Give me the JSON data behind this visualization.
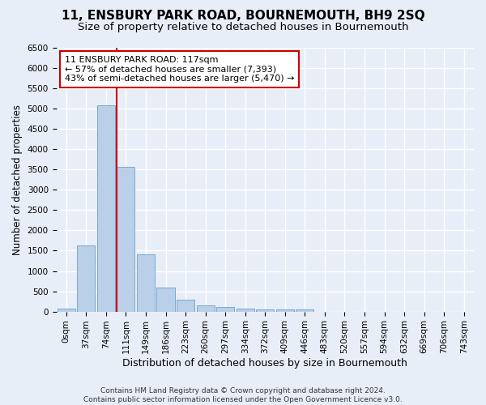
{
  "title": "11, ENSBURY PARK ROAD, BOURNEMOUTH, BH9 2SQ",
  "subtitle": "Size of property relative to detached houses in Bournemouth",
  "xlabel": "Distribution of detached houses by size in Bournemouth",
  "ylabel": "Number of detached properties",
  "footer_line1": "Contains HM Land Registry data © Crown copyright and database right 2024.",
  "footer_line2": "Contains public sector information licensed under the Open Government Licence v3.0.",
  "bar_labels": [
    "0sqm",
    "37sqm",
    "74sqm",
    "111sqm",
    "149sqm",
    "186sqm",
    "223sqm",
    "260sqm",
    "297sqm",
    "334sqm",
    "372sqm",
    "409sqm",
    "446sqm",
    "483sqm",
    "520sqm",
    "557sqm",
    "594sqm",
    "632sqm",
    "669sqm",
    "706sqm",
    "743sqm"
  ],
  "bar_values": [
    75,
    1630,
    5080,
    3570,
    1410,
    590,
    295,
    150,
    105,
    75,
    50,
    50,
    50,
    0,
    0,
    0,
    0,
    0,
    0,
    0,
    0
  ],
  "bar_color": "#bad0e8",
  "bar_edge_color": "#6a9fc8",
  "ylim": [
    0,
    6500
  ],
  "yticks": [
    0,
    500,
    1000,
    1500,
    2000,
    2500,
    3000,
    3500,
    4000,
    4500,
    5000,
    5500,
    6000,
    6500
  ],
  "vline_bin_index": 3,
  "annotation_title": "11 ENSBURY PARK ROAD: 117sqm",
  "annotation_line1": "← 57% of detached houses are smaller (7,393)",
  "annotation_line2": "43% of semi-detached houses are larger (5,470) →",
  "vline_color": "#cc0000",
  "annotation_box_facecolor": "#ffffff",
  "annotation_box_edgecolor": "#cc0000",
  "background_color": "#e8eef8",
  "grid_color": "#ffffff",
  "title_fontsize": 11,
  "subtitle_fontsize": 9.5,
  "xlabel_fontsize": 9,
  "ylabel_fontsize": 8.5,
  "tick_fontsize": 7.5,
  "footer_fontsize": 6.5
}
